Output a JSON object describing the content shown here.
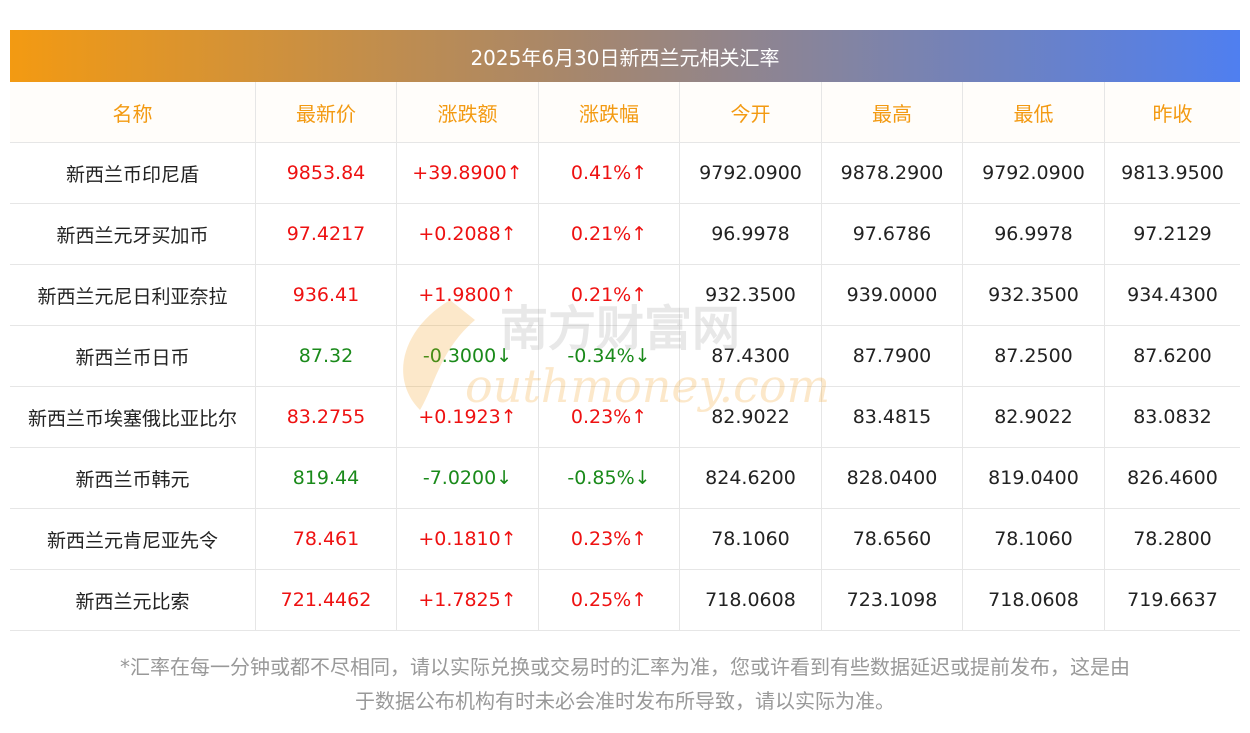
{
  "title": "2025年6月30日新西兰元相关汇率",
  "columns": [
    "名称",
    "最新价",
    "涨跌额",
    "涨跌幅",
    "今开",
    "最高",
    "最低",
    "昨收"
  ],
  "rows": [
    {
      "name": "新西兰币印尼盾",
      "latest": "9853.84",
      "change": "+39.8900↑",
      "pct": "0.41%↑",
      "open": "9792.0900",
      "high": "9878.2900",
      "low": "9792.0900",
      "prev": "9813.9500",
      "dir": "up"
    },
    {
      "name": "新西兰元牙买加币",
      "latest": "97.4217",
      "change": "+0.2088↑",
      "pct": "0.21%↑",
      "open": "96.9978",
      "high": "97.6786",
      "low": "96.9978",
      "prev": "97.2129",
      "dir": "up"
    },
    {
      "name": "新西兰元尼日利亚奈拉",
      "latest": "936.41",
      "change": "+1.9800↑",
      "pct": "0.21%↑",
      "open": "932.3500",
      "high": "939.0000",
      "low": "932.3500",
      "prev": "934.4300",
      "dir": "up"
    },
    {
      "name": "新西兰币日币",
      "latest": "87.32",
      "change": "-0.3000↓",
      "pct": "-0.34%↓",
      "open": "87.4300",
      "high": "87.7900",
      "low": "87.2500",
      "prev": "87.6200",
      "dir": "down"
    },
    {
      "name": "新西兰币埃塞俄比亚比尔",
      "latest": "83.2755",
      "change": "+0.1923↑",
      "pct": "0.23%↑",
      "open": "82.9022",
      "high": "83.4815",
      "low": "82.9022",
      "prev": "83.0832",
      "dir": "up"
    },
    {
      "name": "新西兰币韩元",
      "latest": "819.44",
      "change": "-7.0200↓",
      "pct": "-0.85%↓",
      "open": "824.6200",
      "high": "828.0400",
      "low": "819.0400",
      "prev": "826.4600",
      "dir": "down"
    },
    {
      "name": "新西兰元肯尼亚先令",
      "latest": "78.461",
      "change": "+0.1810↑",
      "pct": "0.23%↑",
      "open": "78.1060",
      "high": "78.6560",
      "low": "78.1060",
      "prev": "78.2800",
      "dir": "up"
    },
    {
      "name": "新西兰元比索",
      "latest": "721.4462",
      "change": "+1.7825↑",
      "pct": "0.25%↑",
      "open": "718.0608",
      "high": "723.1098",
      "low": "718.0608",
      "prev": "719.6637",
      "dir": "up"
    }
  ],
  "watermark": {
    "cn": "南方财富网",
    "en": "outhmoney.com"
  },
  "footnote_line1": "*汇率在每一分钟或都不尽相同，请以实际兑换或交易时的汇率为准，您或许看到有些数据延迟或提前发布，这是由",
  "footnote_line2": "于数据公布机构有时未必会准时发布所导致，请以实际为准。",
  "colors": {
    "accent": "#f39a12",
    "up": "#ee1111",
    "down": "#1a8a1a",
    "header_gradient_end": "#4f7ff0"
  }
}
